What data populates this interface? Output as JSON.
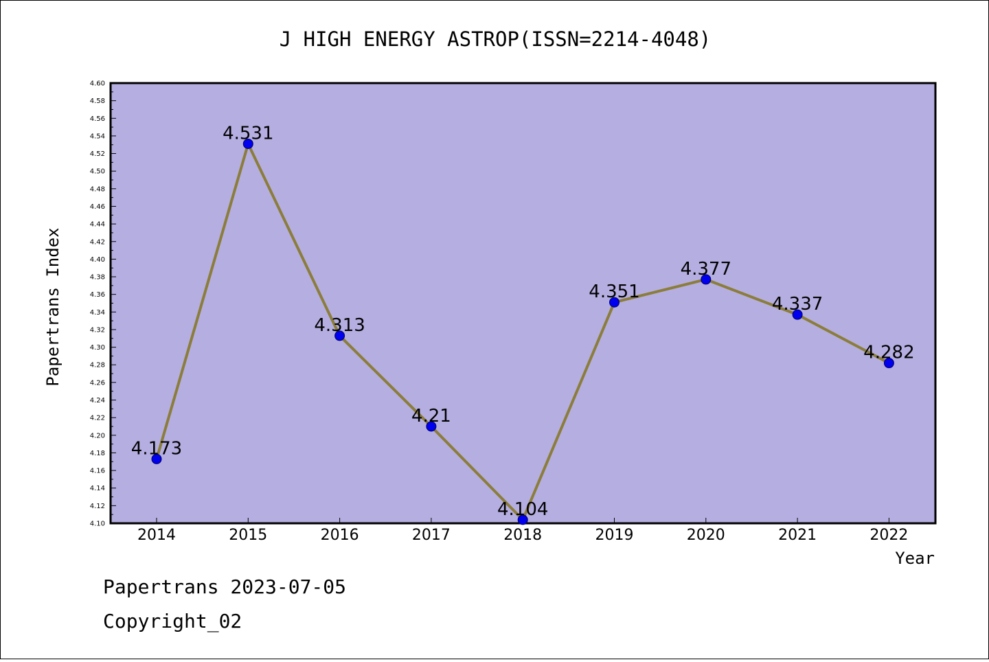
{
  "chart_data": {
    "type": "line",
    "title": "J HIGH ENERGY ASTROP(ISSN=2214-4048)",
    "xlabel": "Year",
    "ylabel": "Papertrans Index",
    "x": [
      "2014",
      "2015",
      "2016",
      "2017",
      "2018",
      "2019",
      "2020",
      "2021",
      "2022"
    ],
    "series": [
      {
        "values": [
          4.173,
          4.531,
          4.313,
          4.21,
          4.104,
          4.351,
          4.377,
          4.337,
          4.282
        ],
        "labels": [
          "4.173",
          "4.531",
          "4.313",
          "4.21",
          "4.104",
          "4.351",
          "4.377",
          "4.337",
          "4.282"
        ]
      }
    ],
    "ylim": [
      4.1,
      4.6
    ],
    "ytick_step": 0.02,
    "grid": false,
    "legend": "none",
    "colors": {
      "plot_background": "#b5aee1",
      "line": "#8b7d3a",
      "marker": "#0000ee"
    }
  },
  "footer": {
    "line1": "Papertrans 2023-07-05",
    "line2": "Copyright_02"
  }
}
